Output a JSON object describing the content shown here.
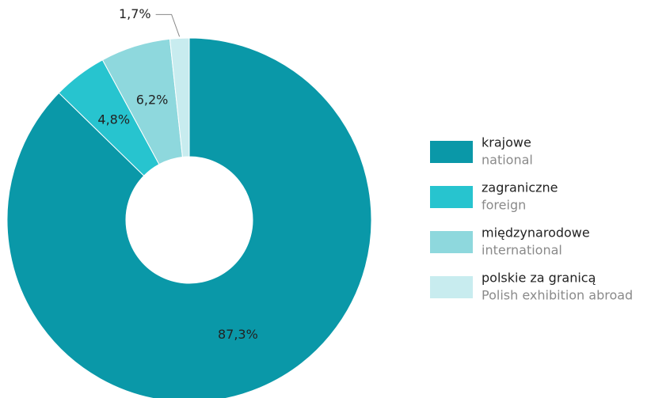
{
  "chart_data": {
    "type": "donut",
    "categories": [
      "krajowe",
      "zagraniczne",
      "międzynarodowe",
      "polskie za granicą"
    ],
    "categories_en": [
      "national",
      "foreign",
      "international",
      "Polish exhibition abroad"
    ],
    "values": [
      87.3,
      4.8,
      6.2,
      1.7
    ],
    "value_labels": [
      "87,3%",
      "4,8%",
      "6,2%",
      "1,7%"
    ],
    "colors": [
      "#0a98a8",
      "#27c4cf",
      "#8ed8dd",
      "#c8ecef"
    ]
  }
}
